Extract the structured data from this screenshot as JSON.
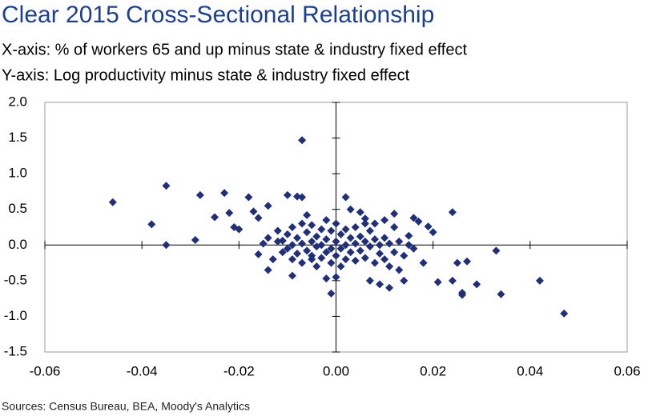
{
  "chart_data": {
    "type": "scatter",
    "title": "Clear 2015 Cross-Sectional Relationship",
    "subtitle_x": "X-axis: % of workers 65 and up minus state & industry fixed effect",
    "subtitle_y": "Y-axis: Log productivity minus state & industry fixed effect",
    "source": "Sources: Census Bureau, BEA, Moody's Analytics",
    "color": "#1f2f7a",
    "xlim": [
      -0.06,
      0.06
    ],
    "xticks": [
      -0.06,
      -0.04,
      -0.02,
      {
        "value": 0,
        "label": "0.00"
      },
      0.02,
      0.04,
      0.06
    ],
    "ylim": [
      -1.5,
      2
    ],
    "yticks": [
      {
        "value": 2,
        "label": "2.0"
      },
      1.5,
      {
        "value": 1,
        "label": "1.0"
      },
      0.5,
      {
        "value": 0,
        "label": "0.0"
      },
      -0.5,
      {
        "value": -1,
        "label": "-1.0"
      },
      -1.5
    ],
    "x": [
      -0.046,
      -0.035,
      -0.038,
      -0.035,
      -0.029,
      -0.028,
      -0.023,
      -0.025,
      -0.022,
      -0.021,
      -0.02,
      -0.018,
      -0.017,
      -0.016,
      -0.014,
      -0.016,
      -0.014,
      -0.012,
      -0.011,
      -0.01,
      -0.009,
      -0.007,
      -0.008,
      -0.007,
      -0.006,
      -0.005,
      -0.002,
      0.0,
      -0.001,
      0.002,
      0.003,
      0.005,
      0.006,
      0.007,
      0.009,
      0.011,
      0.012,
      0.014,
      0.015,
      0.016,
      0.017,
      0.018,
      0.019,
      0.02,
      0.021,
      0.024,
      0.024,
      0.025,
      0.026,
      0.026,
      0.027,
      0.029,
      0.033,
      0.034,
      0.042,
      0.047,
      -0.012,
      -0.011,
      -0.01,
      -0.01,
      -0.009,
      -0.009,
      -0.009,
      -0.008,
      -0.008,
      -0.007,
      -0.007,
      -0.007,
      -0.006,
      -0.006,
      -0.005,
      -0.005,
      -0.005,
      -0.004,
      -0.004,
      -0.004,
      -0.003,
      -0.003,
      -0.003,
      -0.002,
      -0.002,
      -0.002,
      -0.001,
      -0.001,
      -0.001,
      0.0,
      0.0,
      0.0,
      0.001,
      0.001,
      0.001,
      0.002,
      0.002,
      0.002,
      0.003,
      0.003,
      0.004,
      0.004,
      0.004,
      0.005,
      0.005,
      0.006,
      0.006,
      0.007,
      0.007,
      0.008,
      0.008,
      0.009,
      0.009,
      0.01,
      0.01,
      0.011,
      0.011,
      0.012,
      0.013,
      0.013,
      0.014,
      0.015,
      0.016,
      0.006,
      -0.013,
      -0.014,
      -0.015,
      0.008,
      0.01,
      0.012
    ],
    "values": [
      0.6,
      0.83,
      0.29,
      0.0,
      0.07,
      0.7,
      0.73,
      0.39,
      0.45,
      0.25,
      0.22,
      0.67,
      0.47,
      0.38,
      0.55,
      -0.13,
      -0.35,
      0.2,
      0.06,
      0.7,
      -0.43,
      1.47,
      0.68,
      0.67,
      0.42,
      -0.2,
      -0.47,
      -0.45,
      -0.68,
      0.67,
      0.5,
      0.46,
      0.37,
      -0.5,
      -0.55,
      -0.6,
      0.44,
      -0.5,
      0.13,
      0.38,
      0.33,
      -0.25,
      0.26,
      0.18,
      -0.52,
      0.46,
      -0.5,
      -0.25,
      -0.7,
      -0.67,
      -0.23,
      -0.55,
      -0.08,
      -0.69,
      -0.5,
      -0.96,
      0.05,
      -0.1,
      0.15,
      -0.05,
      0.25,
      0.0,
      -0.2,
      0.1,
      -0.12,
      0.3,
      0.02,
      -0.25,
      0.18,
      -0.08,
      0.28,
      0.05,
      -0.15,
      0.12,
      -0.3,
      -0.02,
      0.22,
      0.0,
      -0.18,
      0.35,
      0.08,
      -0.1,
      0.2,
      -0.05,
      -0.25,
      0.3,
      0.05,
      -0.15,
      0.15,
      -0.05,
      -0.3,
      0.22,
      0.0,
      -0.2,
      0.1,
      -0.1,
      0.25,
      0.02,
      -0.22,
      0.12,
      -0.08,
      0.05,
      -0.18,
      0.2,
      -0.02,
      0.08,
      -0.25,
      0.0,
      -0.12,
      0.1,
      -0.2,
      0.02,
      -0.3,
      -0.1,
      0.05,
      -0.35,
      -0.15,
      0.0,
      -0.05,
      0.3,
      -0.2,
      0.1,
      0.02,
      0.3,
      0.35,
      0.25
    ]
  }
}
